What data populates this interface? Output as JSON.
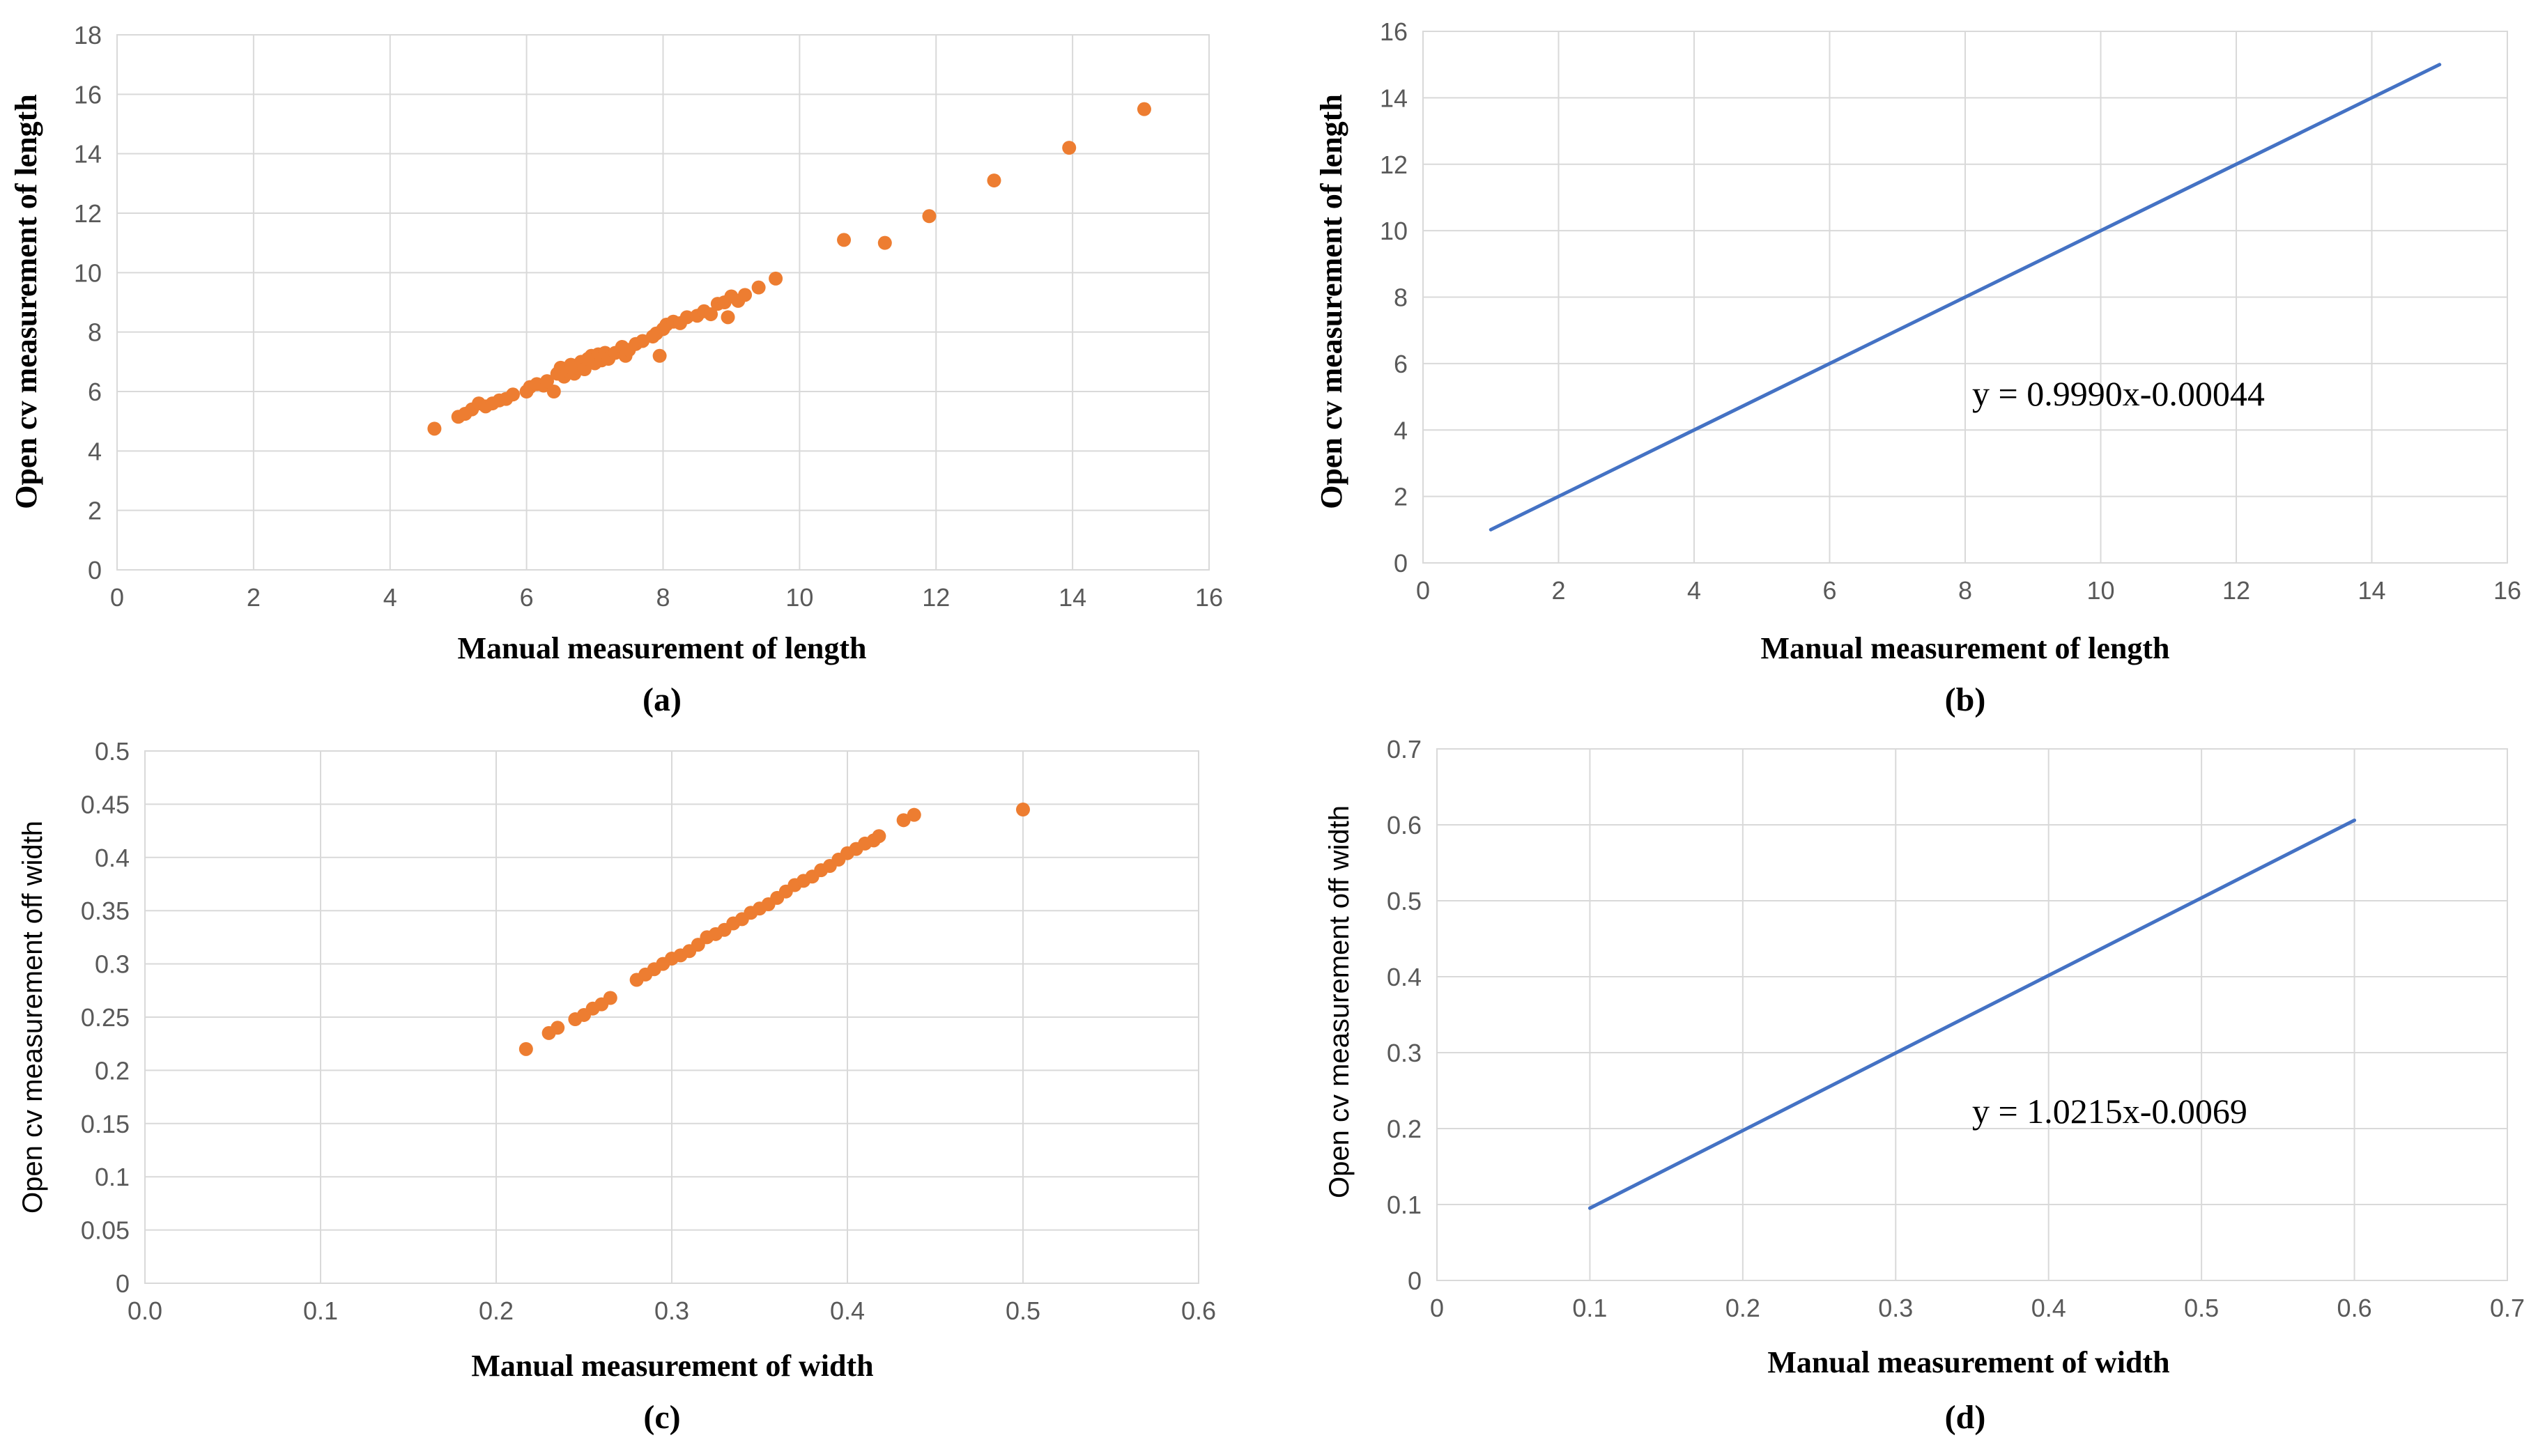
{
  "colors": {
    "scatter": "#ed7d31",
    "line": "#4472c4"
  },
  "chart_data": [
    {
      "type": "scatter",
      "panel_label": "(a)",
      "xlabel": "Manual measurement of length",
      "ylabel": "Open cv measurement of length",
      "xlim": [
        0,
        16
      ],
      "ylim": [
        0,
        18
      ],
      "xticks": [
        "0",
        "2",
        "4",
        "6",
        "8",
        "10",
        "12",
        "14",
        "16"
      ],
      "yticks": [
        "0",
        "2",
        "4",
        "6",
        "8",
        "10",
        "12",
        "14",
        "16",
        "18"
      ],
      "grid": true,
      "points": [
        [
          4.65,
          4.75
        ],
        [
          5.0,
          5.15
        ],
        [
          5.1,
          5.25
        ],
        [
          5.2,
          5.4
        ],
        [
          5.3,
          5.6
        ],
        [
          5.4,
          5.5
        ],
        [
          5.5,
          5.6
        ],
        [
          5.6,
          5.7
        ],
        [
          5.7,
          5.75
        ],
        [
          5.8,
          5.9
        ],
        [
          6.0,
          6.0
        ],
        [
          6.05,
          6.15
        ],
        [
          6.15,
          6.25
        ],
        [
          6.25,
          6.2
        ],
        [
          6.3,
          6.35
        ],
        [
          6.4,
          6.0
        ],
        [
          6.45,
          6.6
        ],
        [
          6.5,
          6.8
        ],
        [
          6.55,
          6.5
        ],
        [
          6.6,
          6.7
        ],
        [
          6.65,
          6.9
        ],
        [
          6.7,
          6.6
        ],
        [
          6.75,
          6.8
        ],
        [
          6.8,
          7.0
        ],
        [
          6.85,
          6.75
        ],
        [
          6.9,
          7.1
        ],
        [
          6.95,
          7.2
        ],
        [
          7.0,
          6.95
        ],
        [
          7.05,
          7.25
        ],
        [
          7.1,
          7.05
        ],
        [
          7.15,
          7.3
        ],
        [
          7.2,
          7.1
        ],
        [
          7.3,
          7.3
        ],
        [
          7.4,
          7.5
        ],
        [
          7.45,
          7.2
        ],
        [
          7.5,
          7.4
        ],
        [
          7.6,
          7.6
        ],
        [
          7.7,
          7.7
        ],
        [
          7.85,
          7.85
        ],
        [
          7.9,
          7.95
        ],
        [
          8.0,
          8.1
        ],
        [
          7.95,
          7.2
        ],
        [
          8.05,
          8.25
        ],
        [
          8.15,
          8.35
        ],
        [
          8.25,
          8.3
        ],
        [
          8.35,
          8.5
        ],
        [
          8.5,
          8.55
        ],
        [
          8.6,
          8.7
        ],
        [
          8.7,
          8.6
        ],
        [
          8.8,
          8.95
        ],
        [
          8.9,
          9.0
        ],
        [
          8.95,
          8.5
        ],
        [
          9.0,
          9.2
        ],
        [
          9.1,
          9.05
        ],
        [
          9.2,
          9.25
        ],
        [
          9.4,
          9.5
        ],
        [
          9.65,
          9.8
        ],
        [
          10.65,
          11.1
        ],
        [
          11.25,
          11.0
        ],
        [
          11.9,
          11.9
        ],
        [
          12.85,
          13.1
        ],
        [
          13.95,
          14.2
        ],
        [
          15.05,
          15.5
        ]
      ]
    },
    {
      "type": "line",
      "panel_label": "(b)",
      "xlabel": "Manual measurement of length",
      "ylabel": "Open cv measurement of length",
      "xlim": [
        0,
        16
      ],
      "ylim": [
        0,
        16
      ],
      "xticks": [
        "0",
        "2",
        "4",
        "6",
        "8",
        "10",
        "12",
        "14",
        "16"
      ],
      "yticks": [
        "0",
        "2",
        "4",
        "6",
        "8",
        "10",
        "12",
        "14",
        "16"
      ],
      "grid": true,
      "x": [
        1,
        15
      ],
      "y": [
        1.0,
        15.0
      ],
      "equation": "y = 0.9990x-0.00044"
    },
    {
      "type": "scatter",
      "panel_label": "(c)",
      "xlabel": "Manual measurement of width",
      "ylabel": "Open cv measurement off width",
      "xlim": [
        0,
        0.6
      ],
      "ylim": [
        0,
        0.5
      ],
      "xticks": [
        "0.0",
        "0.1",
        "0.2",
        "0.3",
        "0.4",
        "0.5",
        "0.6"
      ],
      "yticks": [
        "0",
        "0.05",
        "0.1",
        "0.15",
        "0.2",
        "0.25",
        "0.3",
        "0.35",
        "0.4",
        "0.45",
        "0.5"
      ],
      "grid": true,
      "points": [
        [
          0.217,
          0.22
        ],
        [
          0.23,
          0.235
        ],
        [
          0.235,
          0.24
        ],
        [
          0.245,
          0.248
        ],
        [
          0.25,
          0.252
        ],
        [
          0.255,
          0.258
        ],
        [
          0.26,
          0.262
        ],
        [
          0.265,
          0.268
        ],
        [
          0.28,
          0.285
        ],
        [
          0.285,
          0.29
        ],
        [
          0.29,
          0.295
        ],
        [
          0.295,
          0.3
        ],
        [
          0.3,
          0.305
        ],
        [
          0.305,
          0.308
        ],
        [
          0.31,
          0.312
        ],
        [
          0.315,
          0.318
        ],
        [
          0.32,
          0.325
        ],
        [
          0.325,
          0.328
        ],
        [
          0.33,
          0.332
        ],
        [
          0.335,
          0.338
        ],
        [
          0.34,
          0.342
        ],
        [
          0.345,
          0.348
        ],
        [
          0.35,
          0.352
        ],
        [
          0.355,
          0.356
        ],
        [
          0.36,
          0.362
        ],
        [
          0.365,
          0.368
        ],
        [
          0.37,
          0.374
        ],
        [
          0.375,
          0.378
        ],
        [
          0.38,
          0.382
        ],
        [
          0.385,
          0.388
        ],
        [
          0.39,
          0.392
        ],
        [
          0.395,
          0.398
        ],
        [
          0.4,
          0.404
        ],
        [
          0.405,
          0.408
        ],
        [
          0.41,
          0.413
        ],
        [
          0.415,
          0.416
        ],
        [
          0.418,
          0.42
        ],
        [
          0.432,
          0.435
        ],
        [
          0.438,
          0.44
        ],
        [
          0.5,
          0.445
        ]
      ]
    },
    {
      "type": "line",
      "panel_label": "(d)",
      "xlabel": "Manual measurement of width",
      "ylabel": "Open cv measurement off width",
      "xlim": [
        0,
        0.7
      ],
      "ylim": [
        0,
        0.7
      ],
      "xticks": [
        "0",
        "0.1",
        "0.2",
        "0.3",
        "0.4",
        "0.5",
        "0.6",
        "0.7"
      ],
      "yticks": [
        "0",
        "0.1",
        "0.2",
        "0.3",
        "0.4",
        "0.5",
        "0.6",
        "0.7"
      ],
      "grid": true,
      "x": [
        0.1,
        0.6
      ],
      "y": [
        0.0952,
        0.606
      ],
      "equation": "y = 1.0215x-0.0069"
    }
  ]
}
